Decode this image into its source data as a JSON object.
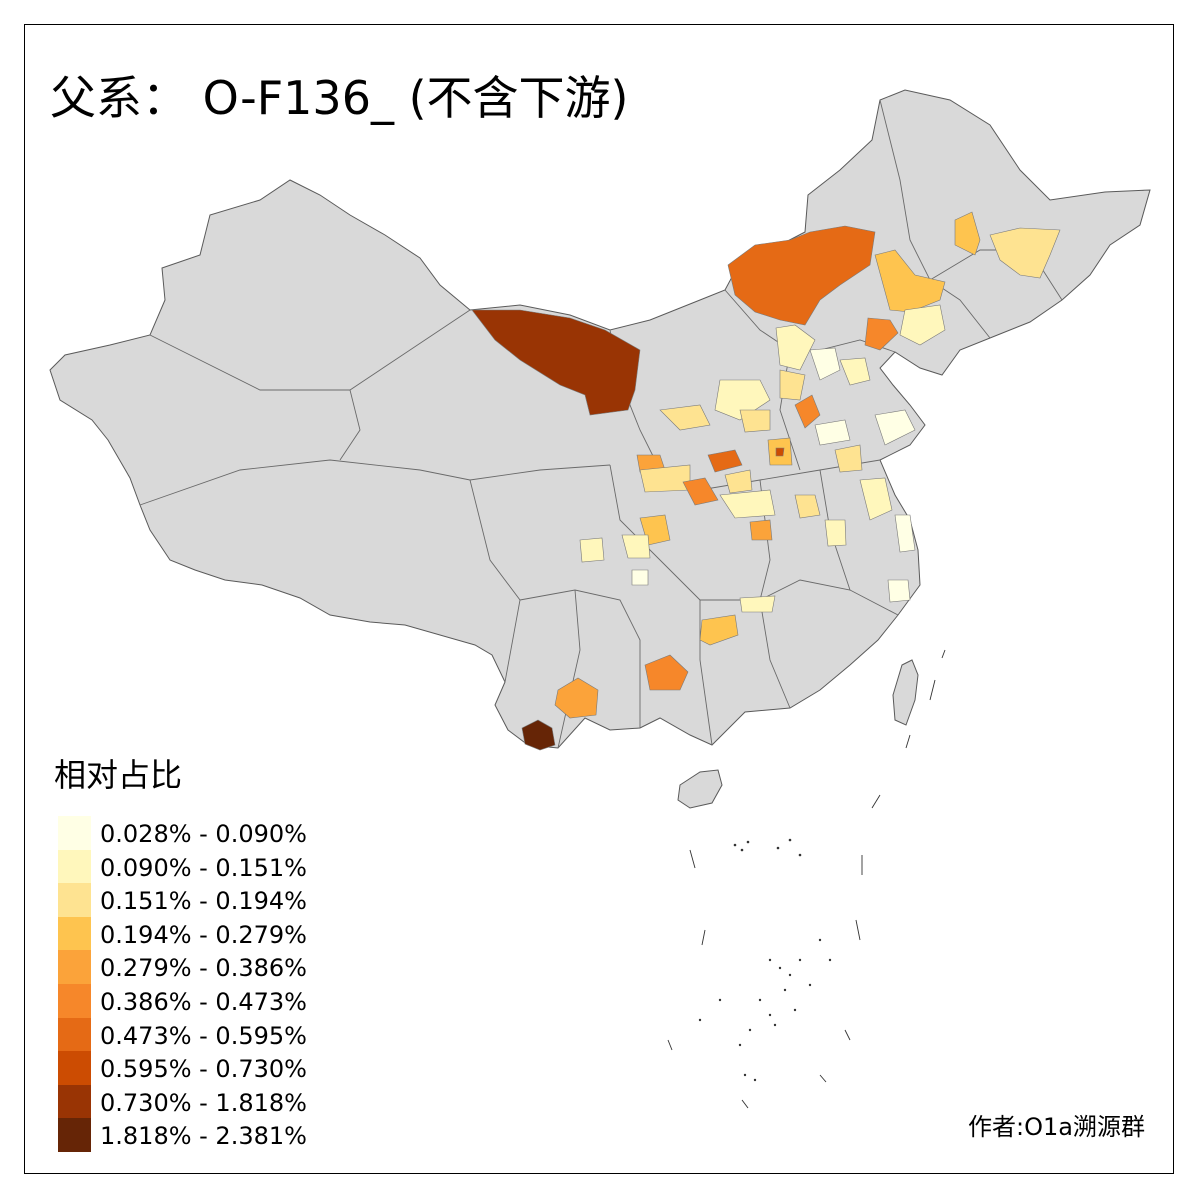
{
  "title": "父系： O-F136_ (不含下游)",
  "legend": {
    "title": "相对占比",
    "bins": [
      {
        "label": "0.028% - 0.090%",
        "color": "#FFFFE5"
      },
      {
        "label": "0.090% - 0.151%",
        "color": "#FFF7BC"
      },
      {
        "label": "0.151% - 0.194%",
        "color": "#FEE391"
      },
      {
        "label": "0.194% - 0.279%",
        "color": "#FEC44F"
      },
      {
        "label": "0.279% - 0.386%",
        "color": "#FBA33A"
      },
      {
        "label": "0.386% - 0.473%",
        "color": "#F6872A"
      },
      {
        "label": "0.473% - 0.595%",
        "color": "#E56A15"
      },
      {
        "label": "0.595% - 0.730%",
        "color": "#CC4C02"
      },
      {
        "label": "0.730% - 1.818%",
        "color": "#993404"
      },
      {
        "label": "1.818% - 2.381%",
        "color": "#662506"
      }
    ]
  },
  "author": "作者:O1a溯源群",
  "colors": {
    "land": "#D9D9D9",
    "border": "#5A5A5A",
    "frame": "#000000"
  }
}
